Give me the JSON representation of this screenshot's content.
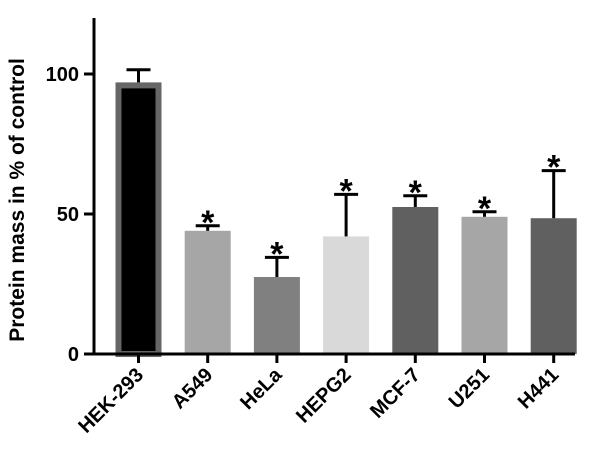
{
  "chart_data": {
    "type": "bar",
    "title": "",
    "xlabel": "",
    "ylabel": "Protein mass in % of control",
    "ylim": [
      0,
      120
    ],
    "yticks": [
      0,
      50,
      100
    ],
    "grid": false,
    "categories": [
      "HEK-293",
      "A549",
      "HeLa",
      "HEPG2",
      "MCF-7",
      "U251",
      "H441"
    ],
    "values": [
      97,
      44,
      27.5,
      42,
      52.5,
      49,
      48.5
    ],
    "errors": [
      4.5,
      1.8,
      7,
      15,
      4,
      1.8,
      17
    ],
    "significance": [
      "",
      "*",
      "*",
      "*",
      "*",
      "*",
      "*"
    ],
    "colors": [
      "#000000",
      "#a6a6a6",
      "#808080",
      "#d9d9d9",
      "#606060",
      "#a6a6a6",
      "#606060"
    ],
    "borders": [
      "#666666",
      "#a6a6a6",
      "#808080",
      "#d9d9d9",
      "#606060",
      "#a6a6a6",
      "#606060"
    ]
  }
}
